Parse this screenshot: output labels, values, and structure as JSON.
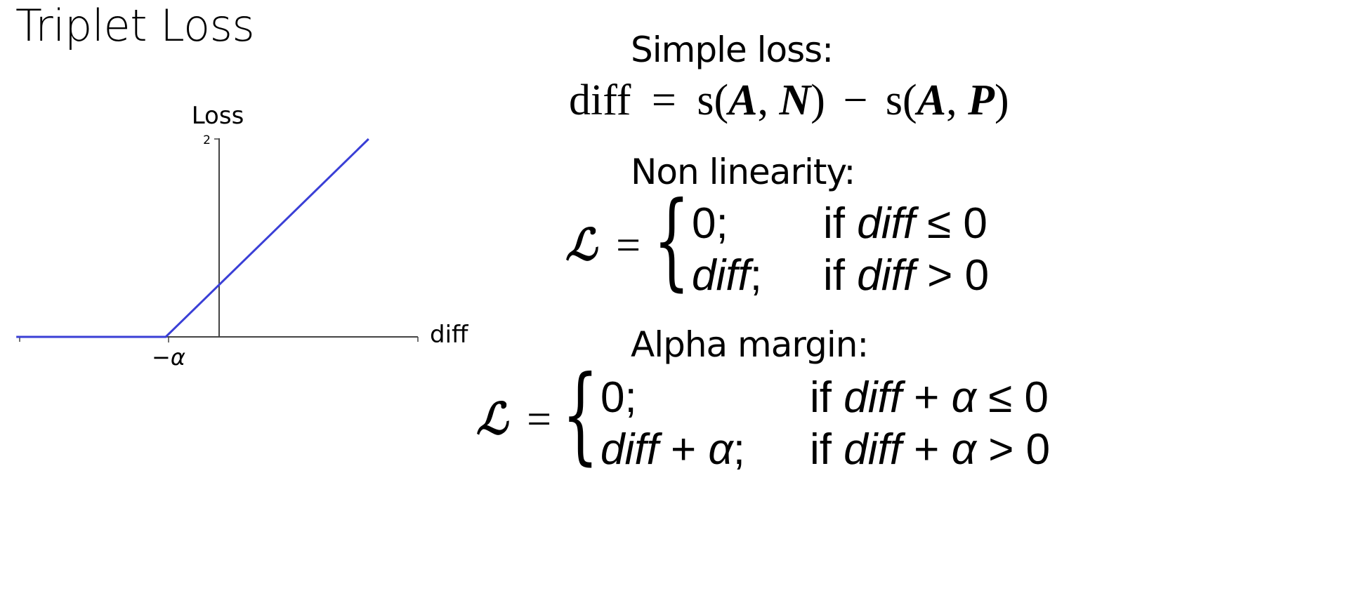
{
  "title": "Triplet Loss",
  "chart_data": {
    "type": "line",
    "ylabel": "Loss",
    "xlabel": "diff",
    "y_tick_labels": [
      "2"
    ],
    "x_tick_labels": [
      "−α"
    ],
    "series": [
      {
        "points": [
          [
            -1.9,
            0
          ],
          [
            -0.5,
            0
          ],
          [
            1.4,
            2.0
          ]
        ]
      }
    ],
    "line_color": "#3a3fd6"
  },
  "sections": {
    "simple": {
      "label": "Simple loss:",
      "lhs": "diff",
      "eq": "=",
      "s1": "s(",
      "a1": "A",
      "comma1": ", ",
      "n": "N",
      "close1": ")",
      "minus": "−",
      "s2": "s(",
      "a2": "A",
      "comma2": ", ",
      "p": "P",
      "close2": ")"
    },
    "nonlinear": {
      "label": "Non linearity:",
      "lhs": "ℒ",
      "eq": "=",
      "row1_val": "0;",
      "row1_if": "if ",
      "row1_var": "diff",
      "row1_cond": " ≤ 0",
      "row2_val_var": "diff",
      "row2_val_suffix": ";",
      "row2_if": "if ",
      "row2_var": "diff",
      "row2_cond": " > 0"
    },
    "alpha": {
      "label": "Alpha margin:",
      "lhs": "ℒ",
      "eq": "=",
      "row1_val": "0;",
      "row1_if": "if ",
      "row1_var": "diff",
      "row1_plus": " + ",
      "row1_alpha": "α",
      "row1_cond": " ≤ 0",
      "row2_var": "diff",
      "row2_plus": " + ",
      "row2_alpha": "α",
      "row2_suffix": ";",
      "row2_if": "if ",
      "row2_cvar": "diff",
      "row2_cplus": " + ",
      "row2_calpha": "α",
      "row2_cond": " > 0"
    }
  }
}
